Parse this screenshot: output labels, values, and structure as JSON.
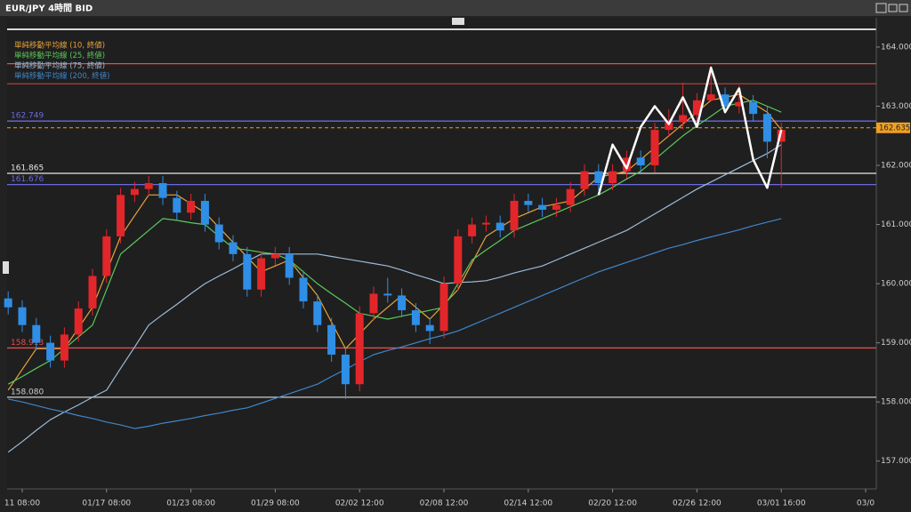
{
  "chart_data": {
    "type": "candlestick",
    "title": "EUR/JPY 4時間 BID",
    "categories": [
      null,
      "11 08:00",
      null,
      null,
      null,
      null,
      null,
      "01/17 08:00",
      null,
      null,
      null,
      null,
      null,
      "01/23 08:00",
      null,
      null,
      null,
      null,
      null,
      "01/29 08:00",
      null,
      null,
      null,
      null,
      null,
      "02/02 12:00",
      null,
      null,
      null,
      null,
      null,
      "02/08 12:00",
      null,
      null,
      null,
      null,
      null,
      "02/14 12:00",
      null,
      null,
      null,
      null,
      null,
      "02/20 12:00",
      null,
      null,
      null,
      null,
      null,
      "02/26 12:00",
      null,
      null,
      null,
      null,
      null,
      "03/01 16:00",
      null,
      null,
      null,
      null,
      null,
      "03/0"
    ],
    "open": [
      159.75,
      159.6,
      159.3,
      159.0,
      158.7,
      159.14,
      159.58,
      160.13,
      160.8,
      161.5,
      161.6,
      161.7,
      161.45,
      161.2,
      161.4,
      161.0,
      160.7,
      160.5,
      159.9,
      160.43,
      160.5,
      160.1,
      159.7,
      159.3,
      158.8,
      158.3,
      159.5,
      159.83,
      159.8,
      159.55,
      159.3,
      159.2,
      160.0,
      160.8,
      161.0,
      161.03,
      160.9,
      161.4,
      161.33,
      161.25,
      161.33,
      161.6,
      161.9,
      161.7,
      161.9,
      162.13,
      162.0,
      162.6,
      162.73,
      162.85,
      163.1,
      163.2,
      163.0,
      163.07,
      162.87,
      162.4,
      null,
      null,
      null,
      null,
      null,
      null
    ],
    "high": [
      159.87,
      159.72,
      159.42,
      159.12,
      159.26,
      159.7,
      160.25,
      160.92,
      161.62,
      161.72,
      161.82,
      161.82,
      161.57,
      161.52,
      161.52,
      161.12,
      160.82,
      160.62,
      160.55,
      160.62,
      160.62,
      160.22,
      159.82,
      159.42,
      158.92,
      159.62,
      159.95,
      160.1,
      159.92,
      159.67,
      159.42,
      160.12,
      160.92,
      161.12,
      161.15,
      161.15,
      161.52,
      161.52,
      161.45,
      161.45,
      161.72,
      162.02,
      162.02,
      162.02,
      162.25,
      162.25,
      162.72,
      162.95,
      163.4,
      163.22,
      163.68,
      163.32,
      163.35,
      163.19,
      162.99,
      162.72,
      null,
      null,
      null,
      null,
      null,
      null
    ],
    "low": [
      159.48,
      159.18,
      158.88,
      158.58,
      158.58,
      159.02,
      159.46,
      160.01,
      160.68,
      161.38,
      161.48,
      161.33,
      161.08,
      161.08,
      160.88,
      160.58,
      160.38,
      159.78,
      159.78,
      160.31,
      159.98,
      159.58,
      159.18,
      158.68,
      158.05,
      158.18,
      159.38,
      159.68,
      159.43,
      159.18,
      158.98,
      159.08,
      159.88,
      160.68,
      160.88,
      160.78,
      160.78,
      161.21,
      161.13,
      161.13,
      161.21,
      161.48,
      161.58,
      161.58,
      161.78,
      161.88,
      161.88,
      162.48,
      162.61,
      162.73,
      163.08,
      162.88,
      162.88,
      162.75,
      162.12,
      161.62,
      null,
      null,
      null,
      null,
      null,
      null
    ],
    "close": [
      159.6,
      159.3,
      159.0,
      158.7,
      159.14,
      159.58,
      160.13,
      160.8,
      161.5,
      161.6,
      161.7,
      161.45,
      161.2,
      161.4,
      161.0,
      160.7,
      160.5,
      159.9,
      160.43,
      160.5,
      160.1,
      159.7,
      159.3,
      158.8,
      158.3,
      159.5,
      159.83,
      159.8,
      159.55,
      159.3,
      159.2,
      160.0,
      160.8,
      161.0,
      161.03,
      160.9,
      161.4,
      161.33,
      161.25,
      161.33,
      161.6,
      161.9,
      161.7,
      161.9,
      162.13,
      162.0,
      162.6,
      162.73,
      162.85,
      163.1,
      163.2,
      163.0,
      163.07,
      162.87,
      162.4,
      162.6,
      null,
      null,
      null,
      null,
      null,
      null
    ],
    "up_color": "#e3262a",
    "down_color": "#2f8ee6",
    "series": [
      {
        "name": "単純移動平均線 (10, 終値)",
        "color": "#e8a33a",
        "values": [
          158.2,
          158.55,
          158.9,
          158.9,
          158.9,
          159.25,
          159.6,
          160.2,
          160.8,
          161.15,
          161.5,
          161.5,
          161.5,
          161.35,
          161.2,
          160.95,
          160.7,
          160.45,
          160.2,
          160.3,
          160.4,
          160.1,
          159.8,
          159.35,
          158.9,
          159.15,
          159.4,
          159.6,
          159.8,
          159.6,
          159.4,
          159.65,
          159.9,
          160.35,
          160.8,
          160.95,
          161.1,
          161.2,
          161.3,
          161.35,
          161.4,
          161.6,
          161.8,
          161.85,
          161.9,
          162.1,
          162.3,
          162.5,
          162.7,
          162.9,
          163.1,
          163.15,
          163.2,
          163.05,
          162.9,
          162.6,
          null,
          null,
          null,
          null,
          null,
          null
        ]
      },
      {
        "name": "単純移動平均線 (25, 終値)",
        "color": "#5cc85c",
        "values": [
          158.3,
          158.43,
          158.57,
          158.7,
          158.9,
          159.1,
          159.3,
          159.9,
          160.5,
          160.7,
          160.9,
          161.1,
          161.07,
          161.03,
          161.0,
          160.8,
          160.6,
          160.57,
          160.53,
          160.5,
          160.4,
          160.2,
          160.0,
          159.83,
          159.67,
          159.5,
          159.45,
          159.4,
          159.45,
          159.5,
          159.55,
          159.6,
          160.0,
          160.4,
          160.57,
          160.73,
          160.9,
          161.0,
          161.1,
          161.2,
          161.3,
          161.4,
          161.5,
          161.63,
          161.77,
          161.9,
          162.1,
          162.3,
          162.5,
          162.67,
          162.83,
          163.0,
          163.05,
          163.1,
          163.0,
          162.9,
          null,
          null,
          null,
          null,
          null,
          null
        ]
      },
      {
        "name": "単純移動平均線 (75, 終値)",
        "color": "#9dbbd8",
        "values": [
          157.15,
          157.33,
          157.52,
          157.7,
          157.83,
          157.95,
          158.08,
          158.2,
          158.57,
          158.93,
          159.3,
          159.48,
          159.65,
          159.83,
          160.0,
          160.13,
          160.25,
          160.38,
          160.5,
          160.5,
          160.5,
          160.5,
          160.5,
          160.46,
          160.42,
          160.38,
          160.34,
          160.3,
          160.23,
          160.15,
          160.08,
          160.0,
          160.02,
          160.03,
          160.05,
          160.11,
          160.18,
          160.24,
          160.3,
          160.4,
          160.5,
          160.6,
          160.7,
          160.8,
          160.9,
          161.04,
          161.18,
          161.32,
          161.46,
          161.6,
          161.72,
          161.84,
          161.96,
          162.08,
          162.2,
          162.35,
          null,
          null,
          null,
          null,
          null,
          null
        ]
      },
      {
        "name": "単純移動平均線 (200, 終値)",
        "color": "#3f86c9",
        "values": [
          158.05,
          158.0,
          157.94,
          157.88,
          157.83,
          157.77,
          157.72,
          157.66,
          157.61,
          157.55,
          157.59,
          157.64,
          157.68,
          157.72,
          157.77,
          157.81,
          157.86,
          157.9,
          157.98,
          158.06,
          158.14,
          158.22,
          158.3,
          158.43,
          158.55,
          158.68,
          158.8,
          158.87,
          158.93,
          159.0,
          159.07,
          159.13,
          159.2,
          159.3,
          159.4,
          159.5,
          159.6,
          159.7,
          159.8,
          159.9,
          160.0,
          160.1,
          160.2,
          160.28,
          160.36,
          160.44,
          160.52,
          160.6,
          160.66,
          160.73,
          160.79,
          160.85,
          160.91,
          160.98,
          161.04,
          161.1,
          null,
          null,
          null,
          null,
          null,
          null
        ]
      }
    ],
    "zigzag": {
      "color": "#ffffff",
      "values": [
        null,
        null,
        null,
        null,
        null,
        null,
        null,
        null,
        null,
        null,
        null,
        null,
        null,
        null,
        null,
        null,
        null,
        null,
        null,
        null,
        null,
        null,
        null,
        null,
        null,
        null,
        null,
        null,
        null,
        null,
        null,
        null,
        null,
        null,
        null,
        null,
        null,
        null,
        null,
        null,
        null,
        null,
        161.5,
        162.35,
        161.95,
        162.65,
        163.0,
        162.7,
        163.15,
        162.65,
        163.65,
        162.9,
        163.3,
        162.1,
        161.62,
        162.6,
        null,
        null,
        null,
        null,
        null,
        null
      ]
    },
    "hlines": [
      {
        "value": 163.72,
        "color": "#e0504a"
      },
      {
        "value": 163.38,
        "color": "#b04040"
      },
      {
        "value": 162.749,
        "color": "#6a6adf"
      },
      {
        "value": 161.865,
        "color": "#e6e6e6"
      },
      {
        "value": 161.676,
        "color": "#6a6adf"
      },
      {
        "value": 158.913,
        "color": "#e0504a"
      },
      {
        "value": 158.08,
        "label": "158.080",
        "color": "#cfcfcf"
      }
    ],
    "last_price": {
      "value": 162.635,
      "color": "#f0a020"
    },
    "ylim": [
      156.53,
      164.3
    ],
    "yticks": [
      {
        "value": 157,
        "label": "157.000"
      },
      {
        "value": 158,
        "label": "158.000"
      },
      {
        "value": 159,
        "label": "159.000"
      },
      {
        "value": 160,
        "label": "160.000"
      },
      {
        "value": 161,
        "label": "161.000"
      },
      {
        "value": 162,
        "label": "162.000"
      },
      {
        "value": 163,
        "label": "163.000"
      },
      {
        "value": 164,
        "label": "164.000"
      }
    ]
  }
}
